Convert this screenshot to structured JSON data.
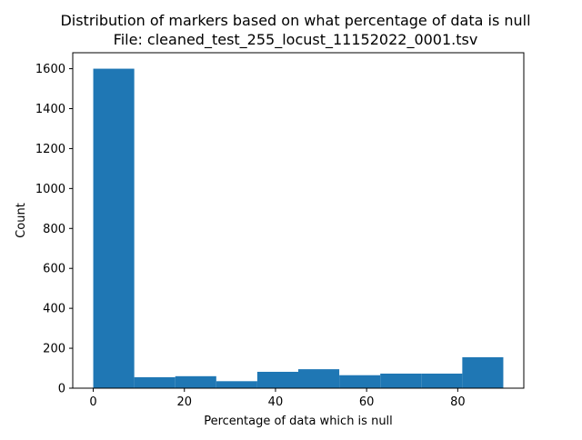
{
  "chart_data": {
    "type": "bar",
    "title_lines": [
      "Distribution of markers based on what percentage of data is null",
      "File: cleaned_test_255_locust_11152022_0001.tsv"
    ],
    "xlabel": "Percentage of data which is null",
    "ylabel": "Count",
    "x_ticks": [
      0,
      20,
      40,
      60,
      80
    ],
    "y_ticks": [
      0,
      200,
      400,
      600,
      800,
      1000,
      1200,
      1400,
      1600
    ],
    "xlim": [
      -4.5,
      94.5
    ],
    "ylim": [
      0,
      1680
    ],
    "bins": [
      {
        "start": 0,
        "end": 9,
        "value": 1600
      },
      {
        "start": 9,
        "end": 18,
        "value": 55
      },
      {
        "start": 18,
        "end": 27,
        "value": 60
      },
      {
        "start": 27,
        "end": 36,
        "value": 35
      },
      {
        "start": 36,
        "end": 45,
        "value": 82
      },
      {
        "start": 45,
        "end": 54,
        "value": 95
      },
      {
        "start": 54,
        "end": 63,
        "value": 65
      },
      {
        "start": 63,
        "end": 72,
        "value": 73
      },
      {
        "start": 72,
        "end": 81,
        "value": 73
      },
      {
        "start": 81,
        "end": 90,
        "value": 155
      }
    ],
    "bar_color": "#1f77b4",
    "grid": false,
    "legend": "none"
  }
}
